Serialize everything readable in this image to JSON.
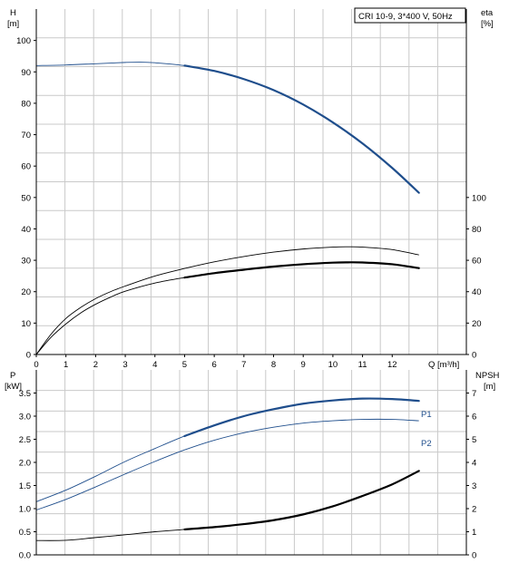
{
  "colors": {
    "pump_curve": "#1f4e8c",
    "efficiency_curve": "#000000",
    "power_curve": "#1f4e8c",
    "npsh_curve": "#000000",
    "grid": "#c9c9c9"
  },
  "chart_data": [
    {
      "type": "line",
      "title": "CRI 10-9, 3*400 V, 50Hz",
      "xlabel": "Q [m³/h]",
      "x_axis": {
        "ticks": [
          "0",
          "1",
          "2",
          "3",
          "4",
          "5",
          "6",
          "7",
          "8",
          "9",
          "10",
          "11",
          "12"
        ],
        "range": [
          0,
          14.5
        ]
      },
      "y_axis_left": {
        "label_line1": "H",
        "label_line2": "[m]",
        "range": [
          0,
          110
        ],
        "ticks": [
          "0",
          "10",
          "20",
          "30",
          "40",
          "50",
          "60",
          "70",
          "80",
          "90",
          "100"
        ]
      },
      "y_axis_right": {
        "label_line1": "eta",
        "label_line2": "[%]",
        "range": [
          0,
          220
        ],
        "ticks": [
          "0",
          "20",
          "40",
          "60",
          "80",
          "100"
        ]
      },
      "grid": true,
      "series": [
        {
          "axis": "left",
          "color_key": "pump_curve",
          "thick_from": 5,
          "points": [
            [
              0,
              92
            ],
            [
              1,
              92.2
            ],
            [
              2,
              92.6
            ],
            [
              3,
              93
            ],
            [
              3.5,
              93.1
            ],
            [
              4,
              92.9
            ],
            [
              5,
              92
            ],
            [
              6,
              90.3
            ],
            [
              7,
              87.7
            ],
            [
              8,
              84.2
            ],
            [
              9,
              79.6
            ],
            [
              10,
              73.9
            ],
            [
              11,
              67.2
            ],
            [
              12,
              59.4
            ],
            [
              12.9,
              51.5
            ]
          ]
        },
        {
          "axis": "right",
          "color_key": "efficiency_curve",
          "thick_from": 5,
          "points": [
            [
              0,
              0
            ],
            [
              0.5,
              11
            ],
            [
              1,
              19.5
            ],
            [
              1.5,
              26.5
            ],
            [
              2,
              32
            ],
            [
              2.5,
              36.5
            ],
            [
              3,
              40.3
            ],
            [
              4,
              45.5
            ],
            [
              5,
              49
            ],
            [
              6,
              51.8
            ],
            [
              7,
              54
            ],
            [
              8,
              56
            ],
            [
              9,
              57.5
            ],
            [
              10,
              58.5
            ],
            [
              10.5,
              58.7
            ],
            [
              11,
              58.6
            ],
            [
              12,
              57.5
            ],
            [
              12.9,
              55
            ]
          ]
        },
        {
          "axis": "left",
          "color_key": "efficiency_curve",
          "thick_from": 99,
          "points": [
            [
              0,
              0
            ],
            [
              0.5,
              6.5
            ],
            [
              1,
              11.5
            ],
            [
              1.5,
              15
            ],
            [
              2,
              17.8
            ],
            [
              2.5,
              20
            ],
            [
              3,
              21.8
            ],
            [
              4,
              25
            ],
            [
              5,
              27.4
            ],
            [
              6,
              29.5
            ],
            [
              7,
              31.2
            ],
            [
              8,
              32.6
            ],
            [
              9,
              33.6
            ],
            [
              10,
              34.2
            ],
            [
              10.5,
              34.3
            ],
            [
              11,
              34.2
            ],
            [
              12,
              33.4
            ],
            [
              12.9,
              31.7
            ]
          ]
        }
      ]
    },
    {
      "type": "line",
      "x_axis": {
        "range": [
          0,
          14.5
        ]
      },
      "y_axis_left": {
        "label_line1": "P",
        "label_line2": "[kW]",
        "range": [
          0,
          4
        ],
        "ticks": [
          "0.0",
          "0.5",
          "1.0",
          "1.5",
          "2.0",
          "2.5",
          "3.0",
          "3.5"
        ]
      },
      "y_axis_right": {
        "label_line1": "NPSH",
        "label_line2": "[m]",
        "range": [
          0,
          8
        ],
        "ticks": [
          "0",
          "1",
          "2",
          "3",
          "4",
          "5",
          "6",
          "7"
        ]
      },
      "grid": true,
      "series": [
        {
          "name": "P1",
          "axis": "left",
          "color_key": "power_curve",
          "thick_from": 5,
          "points": [
            [
              0,
              1.15
            ],
            [
              1,
              1.4
            ],
            [
              2,
              1.7
            ],
            [
              3,
              2.02
            ],
            [
              4,
              2.3
            ],
            [
              5,
              2.57
            ],
            [
              6,
              2.8
            ],
            [
              7,
              3.0
            ],
            [
              8,
              3.15
            ],
            [
              9,
              3.27
            ],
            [
              10,
              3.34
            ],
            [
              11,
              3.38
            ],
            [
              12,
              3.37
            ],
            [
              12.9,
              3.33
            ]
          ]
        },
        {
          "name": "P2",
          "axis": "left",
          "color_key": "power_curve",
          "thick_from": 99,
          "points": [
            [
              0,
              0.97
            ],
            [
              1,
              1.2
            ],
            [
              2,
              1.47
            ],
            [
              3,
              1.75
            ],
            [
              4,
              2.02
            ],
            [
              5,
              2.27
            ],
            [
              6,
              2.48
            ],
            [
              7,
              2.64
            ],
            [
              8,
              2.76
            ],
            [
              9,
              2.85
            ],
            [
              10,
              2.9
            ],
            [
              11,
              2.93
            ],
            [
              12,
              2.93
            ],
            [
              12.9,
              2.9
            ]
          ]
        },
        {
          "axis": "right",
          "color_key": "npsh_curve",
          "thick_from": 5,
          "points": [
            [
              0,
              0.62
            ],
            [
              1,
              0.63
            ],
            [
              2,
              0.75
            ],
            [
              3,
              0.87
            ],
            [
              4,
              1.0
            ],
            [
              5,
              1.1
            ],
            [
              6,
              1.2
            ],
            [
              7,
              1.33
            ],
            [
              8,
              1.5
            ],
            [
              9,
              1.75
            ],
            [
              10,
              2.1
            ],
            [
              11,
              2.55
            ],
            [
              12,
              3.05
            ],
            [
              12.9,
              3.63
            ]
          ]
        }
      ]
    }
  ]
}
